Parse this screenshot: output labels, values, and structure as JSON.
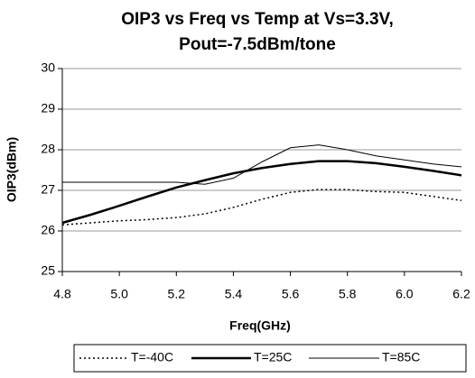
{
  "chart_data": {
    "type": "line",
    "title": [
      "OIP3 vs Freq vs Temp at Vs=3.3V,",
      "Pout=-7.5dBm/tone"
    ],
    "x_label": "Freq(GHz)",
    "y_label": "OIP3(dBm)",
    "x": [
      4.8,
      4.9,
      5.0,
      5.1,
      5.2,
      5.3,
      5.4,
      5.5,
      5.6,
      5.7,
      5.8,
      5.9,
      6.0,
      6.1,
      6.2
    ],
    "series": [
      {
        "name": "T=-40C",
        "color": "#000000",
        "dash": "2,3",
        "width": 1.5,
        "values": [
          26.15,
          26.2,
          26.25,
          26.28,
          26.33,
          26.42,
          26.58,
          26.78,
          26.95,
          27.02,
          27.02,
          26.97,
          26.95,
          26.85,
          26.75
        ]
      },
      {
        "name": "T=25C",
        "color": "#000000",
        "dash": "none",
        "width": 2.5,
        "values": [
          26.2,
          26.4,
          26.62,
          26.85,
          27.07,
          27.25,
          27.42,
          27.55,
          27.65,
          27.72,
          27.72,
          27.67,
          27.58,
          27.48,
          27.37
        ]
      },
      {
        "name": "T=85C",
        "color": "#000000",
        "dash": "none",
        "width": 1,
        "values": [
          27.2,
          27.2,
          27.2,
          27.2,
          27.2,
          27.15,
          27.3,
          27.7,
          28.05,
          28.12,
          28.0,
          27.85,
          27.75,
          27.65,
          27.58
        ]
      }
    ],
    "xlim": [
      4.8,
      6.2
    ],
    "xticks": [
      4.8,
      {
        "value": 5,
        "label": "5.0"
      },
      5.2,
      5.4,
      5.6,
      5.8,
      {
        "value": 6,
        "label": "6.0"
      },
      6.2
    ],
    "ylim": [
      25,
      30
    ],
    "yticks": [
      25,
      26,
      27,
      28,
      29,
      30
    ],
    "grid": true,
    "legend": "bottom"
  }
}
